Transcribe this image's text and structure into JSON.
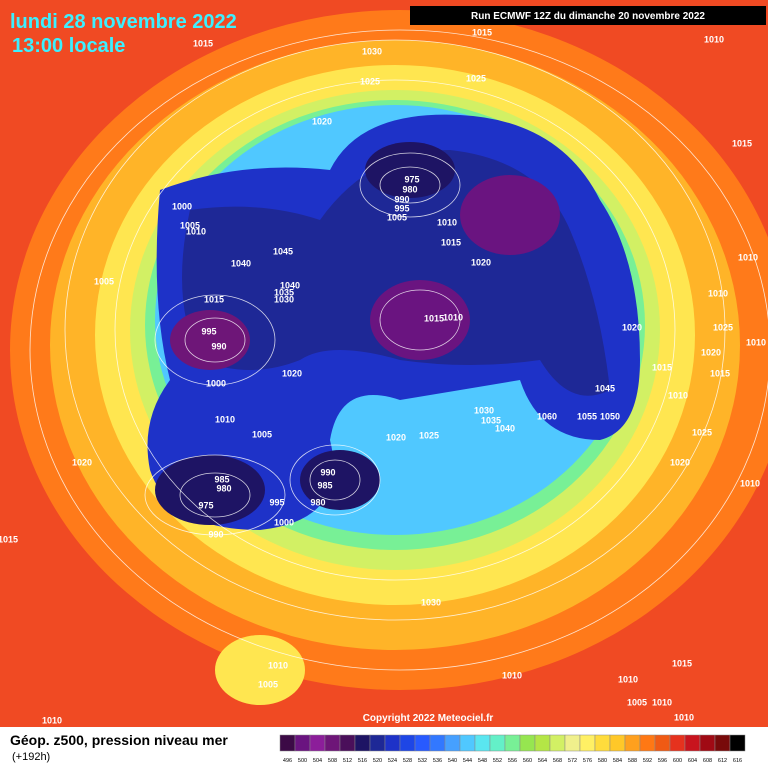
{
  "header": {
    "title": "lundi 28 novembre 2022",
    "subtitle": "13:00 locale",
    "run": "Run ECMWF 12Z du dimanche 20 novembre 2022"
  },
  "footer": {
    "product": "Géop. z500, pression niveau mer",
    "lead": "(+192h)",
    "copyright": "Copyright 2022 Meteociel.fr"
  },
  "legend": {
    "levels": [
      496,
      500,
      504,
      508,
      512,
      516,
      520,
      524,
      528,
      532,
      536,
      540,
      544,
      548,
      552,
      556,
      560,
      564,
      568,
      572,
      576,
      580,
      584,
      588,
      592,
      596,
      600,
      604,
      608,
      612,
      616
    ],
    "colors": [
      "#3c0a46",
      "#6a1480",
      "#8c1e9a",
      "#6e1678",
      "#4a0f5a",
      "#1e1464",
      "#1e2896",
      "#1e32c8",
      "#1e46e6",
      "#285aff",
      "#3278ff",
      "#46a0ff",
      "#50c8ff",
      "#5ae6f0",
      "#64f0c8",
      "#78f096",
      "#96e650",
      "#b4e646",
      "#d2f064",
      "#f0f08c",
      "#fff064",
      "#ffdc3c",
      "#ffc828",
      "#ffa01e",
      "#ff7814",
      "#f05a14",
      "#e6321e",
      "#c8141e",
      "#a00a14",
      "#780a0a",
      "#000000"
    ]
  },
  "isobar_labels": [
    "1015",
    "1030",
    "1015",
    "1010",
    "1025",
    "1025",
    "1020",
    "1015",
    "975",
    "980",
    "990",
    "995",
    "1005",
    "1010",
    "1000",
    "1005",
    "1010",
    "1015",
    "1020",
    "1045",
    "1040",
    "1040",
    "1035",
    "1030",
    "1005",
    "1015",
    "1015",
    "1010",
    "995",
    "990",
    "1010",
    "1010",
    "1020",
    "1025",
    "1010",
    "1020",
    "1015",
    "1015",
    "1020",
    "1000",
    "1045",
    "1010",
    "1010",
    "1030",
    "1035",
    "1040",
    "1060",
    "1055",
    "1050",
    "1005",
    "1020",
    "1025",
    "1025",
    "1020",
    "1020",
    "990",
    "985",
    "985",
    "980",
    "975",
    "995",
    "980",
    "1000",
    "1010",
    "990",
    "1015",
    "1030",
    "1010",
    "1005",
    "1015",
    "1010",
    "1010",
    "1005",
    "1010",
    "1010",
    "1010"
  ]
}
